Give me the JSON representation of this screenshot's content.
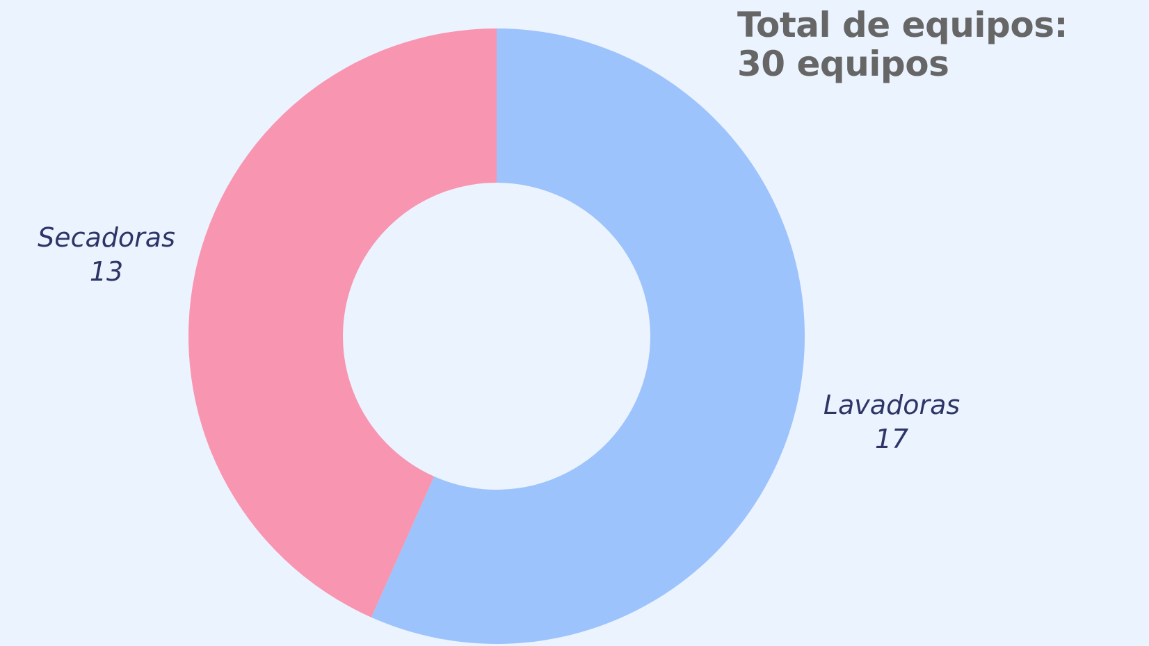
{
  "title": {
    "line1": "Total de equipos:",
    "line2": "30 equipos"
  },
  "chart_data": {
    "type": "pie",
    "donut": true,
    "categories": [
      "Lavadoras",
      "Secadoras"
    ],
    "values": [
      17,
      13
    ],
    "colors": [
      "#9cc3fc",
      "#f895b0"
    ],
    "label_color": "#2d3566"
  }
}
